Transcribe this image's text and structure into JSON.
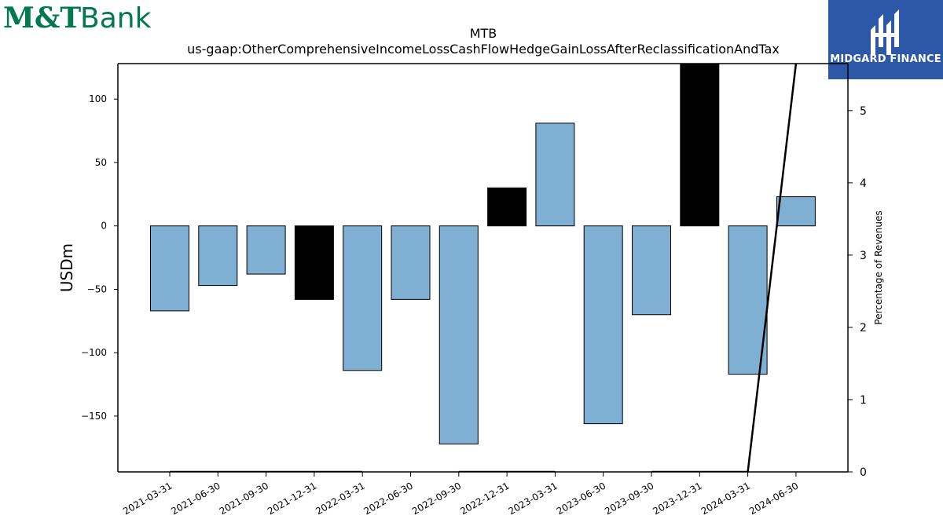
{
  "logos": {
    "left": {
      "text_a": "M&T",
      "text_b": "Bank",
      "color": "#007a4d"
    },
    "right": {
      "text": "MIDGARD FINANCE",
      "bg": "#2d58a7"
    }
  },
  "chart_data": {
    "type": "bar",
    "title": "MTB",
    "subtitle": "us-gaap:OtherComprehensiveIncomeLossCashFlowHedgeGainLossAfterReclassificationAndTax",
    "ylabel": "USDm",
    "y2label": "Percentage of Revenues",
    "categories": [
      "2021-03-31",
      "2021-06-30",
      "2021-09-30",
      "2021-12-31",
      "2022-03-31",
      "2022-06-30",
      "2022-09-30",
      "2022-12-31",
      "2023-03-31",
      "2023-06-30",
      "2023-09-30",
      "2023-12-31",
      "2024-03-31",
      "2024-06-30"
    ],
    "values": [
      -67,
      -47,
      -38,
      -58,
      -114,
      -58,
      -172,
      30,
      81,
      -156,
      -70,
      128,
      -117,
      23
    ],
    "highlight": [
      false,
      false,
      false,
      true,
      false,
      false,
      false,
      true,
      false,
      false,
      false,
      true,
      false,
      false
    ],
    "ylim": [
      -194,
      128
    ],
    "yticks": [
      100,
      50,
      0,
      -50,
      -100,
      -150
    ],
    "ytick_labels": [
      "100",
      "50",
      "0",
      "−50",
      "−100",
      "−150"
    ],
    "y2lim": [
      0,
      5.65
    ],
    "y2ticks": [
      0,
      1,
      2,
      3,
      4,
      5
    ],
    "y2_series": [
      {
        "x": [
          "2021-03-31",
          "2021-06-30",
          "2021-09-30",
          "2021-12-31",
          "2022-03-31"
        ],
        "values": [
          0,
          0,
          0,
          0,
          0
        ]
      },
      {
        "x": [
          "2022-09-30",
          "2022-12-31",
          "2023-03-31"
        ],
        "values": [
          0,
          0,
          0
        ]
      },
      {
        "x": [
          "2023-09-30",
          "2023-12-31",
          "2024-03-31",
          "2024-06-30"
        ],
        "values": [
          0,
          0,
          0,
          5.65
        ]
      }
    ],
    "colors": {
      "bar": "#7fb0d3",
      "highlight": "#000000",
      "line": "#000000"
    }
  }
}
